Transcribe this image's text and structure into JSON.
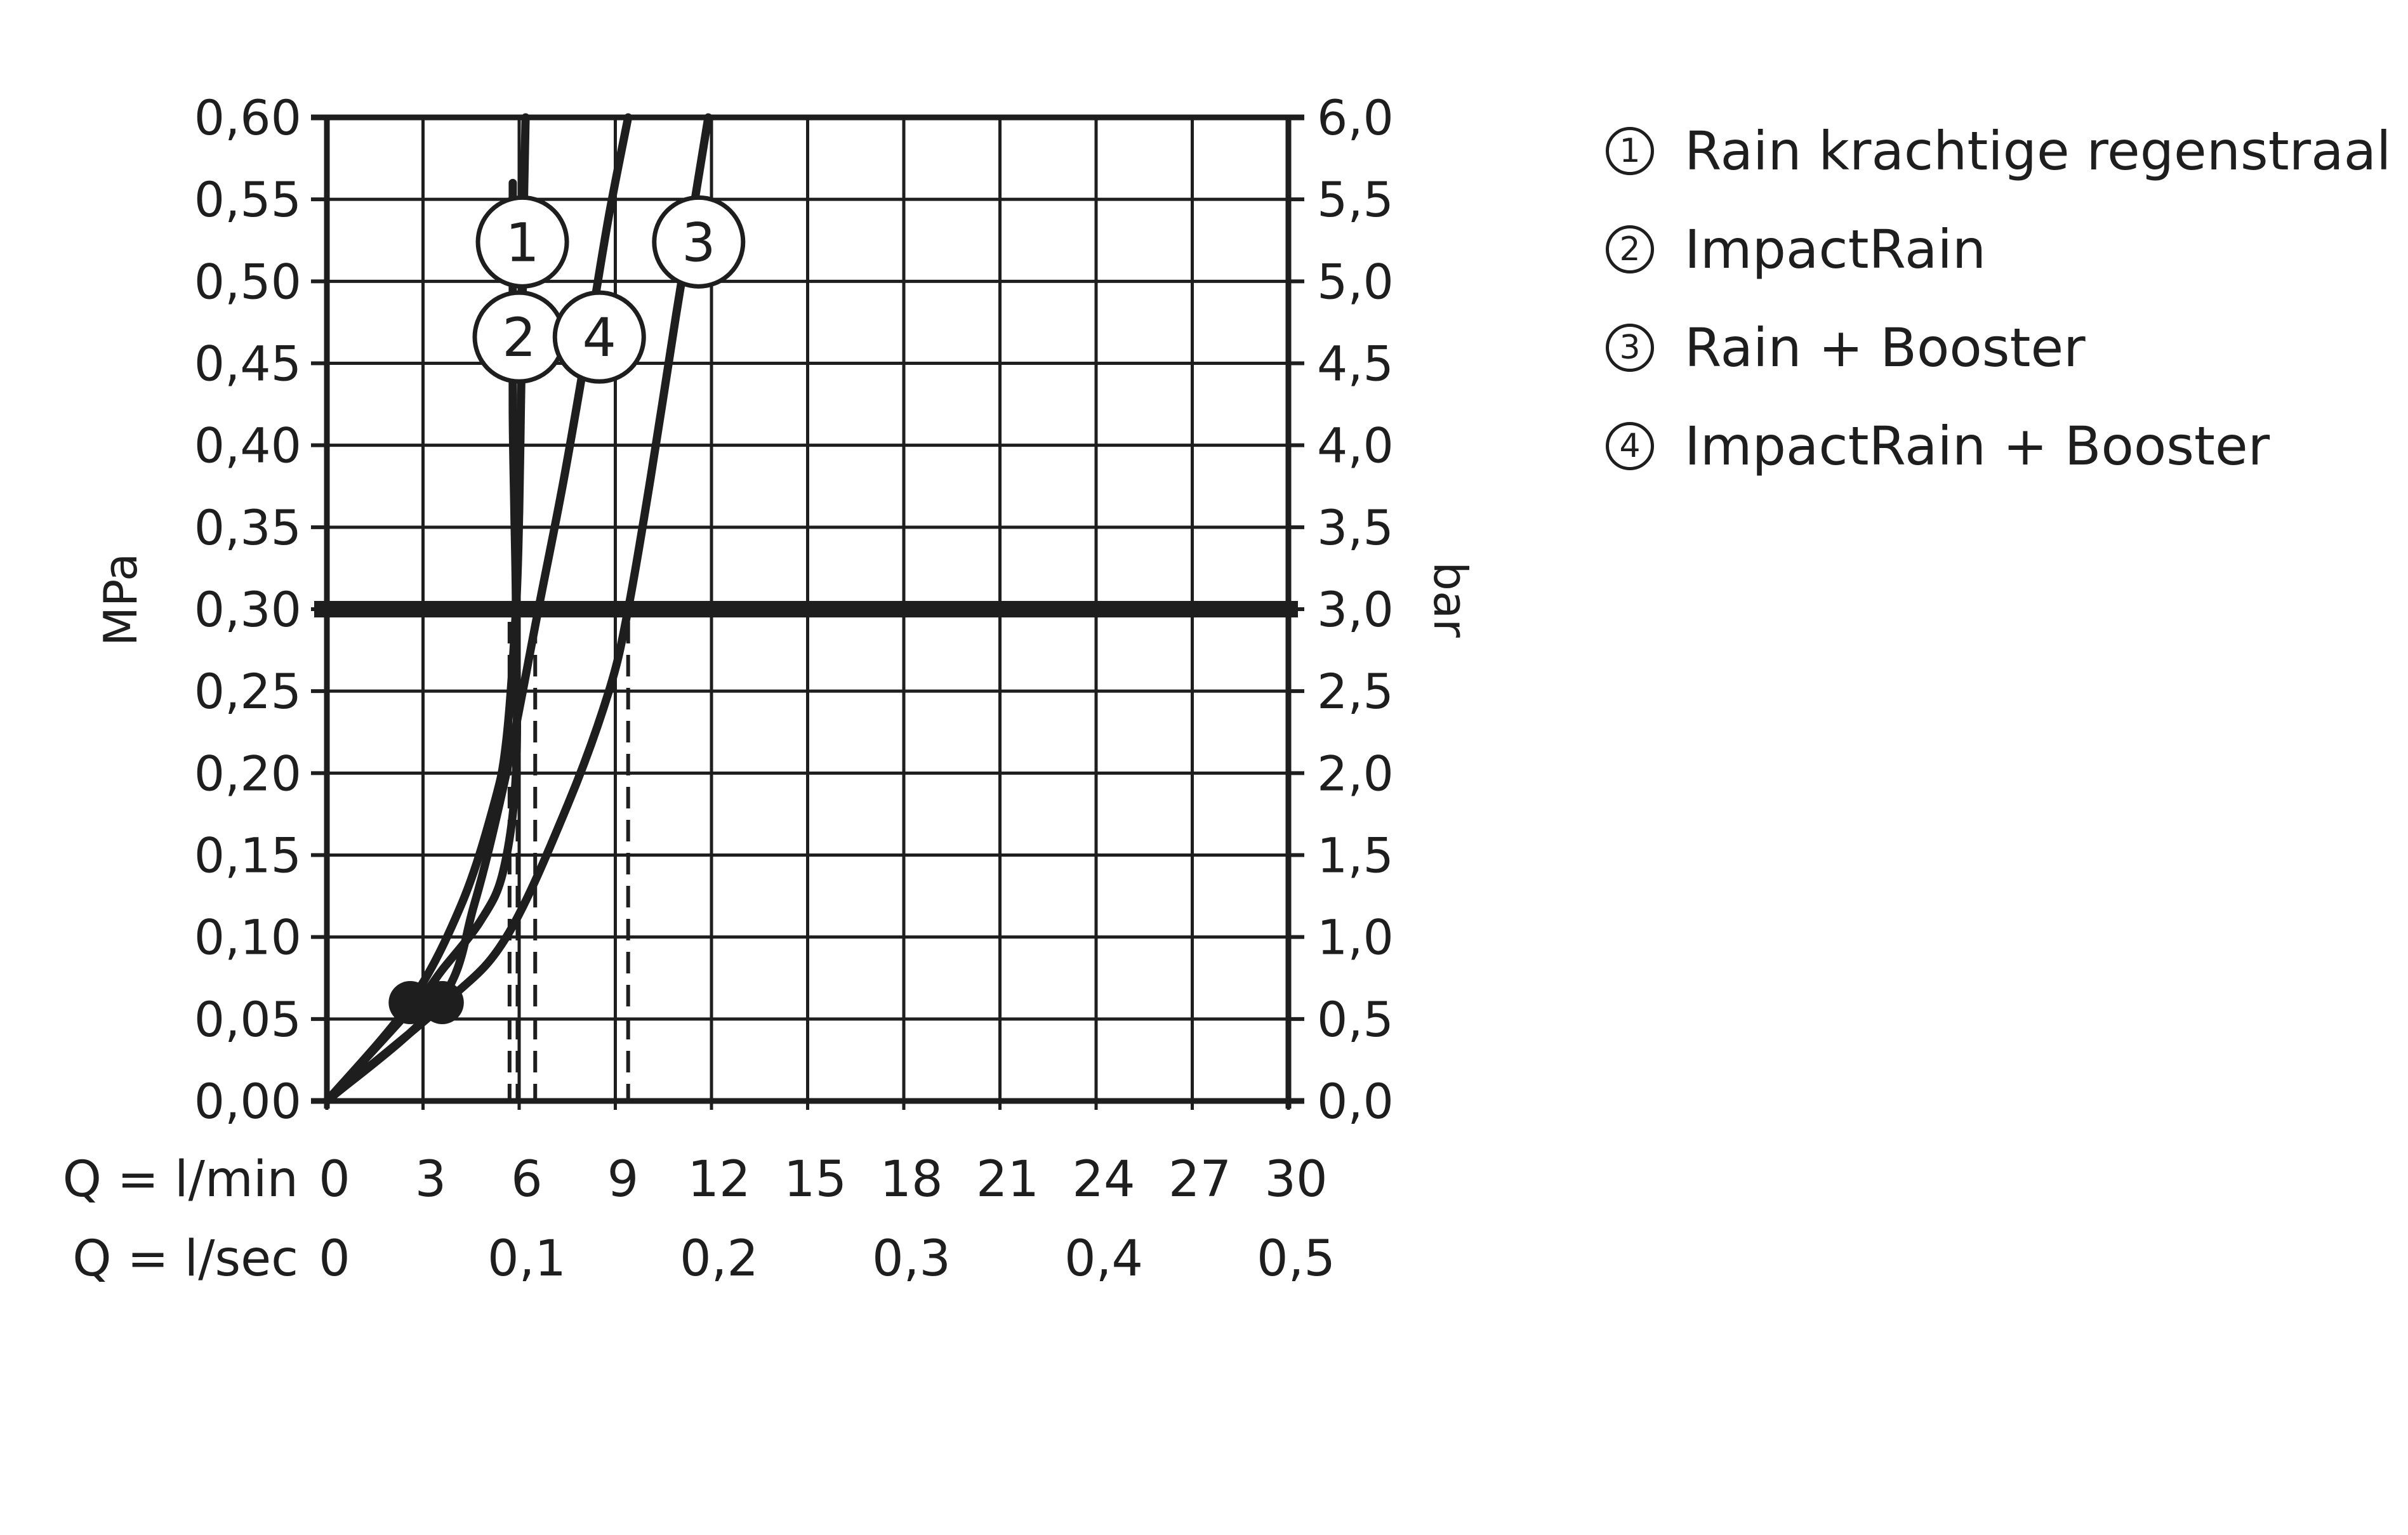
{
  "chart_data": {
    "type": "line",
    "title": "",
    "ylabel_left": "MPa",
    "ylabel_right": "bar",
    "xlabel_rows": [
      "Q = l/min",
      "Q = l/sec"
    ],
    "x_ticks_lmin": [
      "0",
      "3",
      "6",
      "9",
      "12",
      "15",
      "18",
      "21",
      "24",
      "27",
      "30"
    ],
    "x_ticks_lsec": [
      {
        "label": "0",
        "x": 0
      },
      {
        "label": "0,1",
        "x": 6
      },
      {
        "label": "0,2",
        "x": 12
      },
      {
        "label": "0,3",
        "x": 18
      },
      {
        "label": "0,4",
        "x": 24
      },
      {
        "label": "0,5",
        "x": 30
      }
    ],
    "y_ticks_left": [
      "0,00",
      "0,05",
      "0,10",
      "0,15",
      "0,20",
      "0,25",
      "0,30",
      "0,35",
      "0,40",
      "0,45",
      "0,50",
      "0,55",
      "0,60"
    ],
    "y_ticks_right": [
      "0,0",
      "0,5",
      "1,0",
      "1,5",
      "2,0",
      "2,5",
      "3,0",
      "3,5",
      "4,0",
      "4,5",
      "5,0",
      "5,5",
      "6,0"
    ],
    "xlim": [
      0,
      30
    ],
    "ylim": [
      0,
      0.6
    ],
    "grid": true,
    "reference_pressure": 0.3,
    "series": [
      {
        "name": "1",
        "x": [
          0,
          2.6,
          4.2,
          5.2,
          5.6,
          5.9,
          6.0,
          6.05,
          6.1,
          6.15,
          6.2
        ],
        "y": [
          0,
          0.06,
          0.12,
          0.18,
          0.22,
          0.3,
          0.36,
          0.42,
          0.48,
          0.55,
          0.6
        ]
      },
      {
        "name": "2",
        "x": [
          0,
          2.8,
          3.6,
          4.8,
          5.5,
          5.9,
          5.9,
          5.85,
          5.8,
          5.8,
          5.8
        ],
        "y": [
          0,
          0.06,
          0.08,
          0.11,
          0.14,
          0.2,
          0.3,
          0.36,
          0.42,
          0.5,
          0.56
        ]
      },
      {
        "name": "3",
        "x": [
          0,
          3.7,
          5.6,
          7.5,
          8.8,
          9.4,
          10.1,
          10.9,
          11.4,
          11.9
        ],
        "y": [
          0,
          0.06,
          0.1,
          0.18,
          0.25,
          0.3,
          0.38,
          0.48,
          0.54,
          0.6
        ]
      },
      {
        "name": "4",
        "x": [
          0,
          3.5,
          4.6,
          5.6,
          6.6,
          7.4,
          8.2,
          8.8,
          9.4
        ],
        "y": [
          0,
          0.06,
          0.12,
          0.2,
          0.3,
          0.38,
          0.47,
          0.54,
          0.6
        ]
      }
    ],
    "curve_labels": [
      {
        "label": "1",
        "x": 6.1,
        "y": 0.524
      },
      {
        "label": "2",
        "x": 6.0,
        "y": 0.466
      },
      {
        "label": "3",
        "x": 11.6,
        "y": 0.524
      },
      {
        "label": "4",
        "x": 8.5,
        "y": 0.466
      }
    ],
    "dashed_lines": [
      {
        "x": 5.7
      },
      {
        "x": 5.95
      },
      {
        "x": 6.5
      },
      {
        "x": 9.4
      }
    ],
    "markers": [
      {
        "x": 2.6,
        "y": 0.06
      },
      {
        "x": 3.6,
        "y": 0.06
      }
    ]
  },
  "legend": {
    "items": [
      {
        "num": "1",
        "label": "Rain krachtige regenstraal"
      },
      {
        "num": "2",
        "label": "ImpactRain"
      },
      {
        "num": "3",
        "label": "Rain + Booster"
      },
      {
        "num": "4",
        "label": "ImpactRain + Booster"
      }
    ]
  }
}
